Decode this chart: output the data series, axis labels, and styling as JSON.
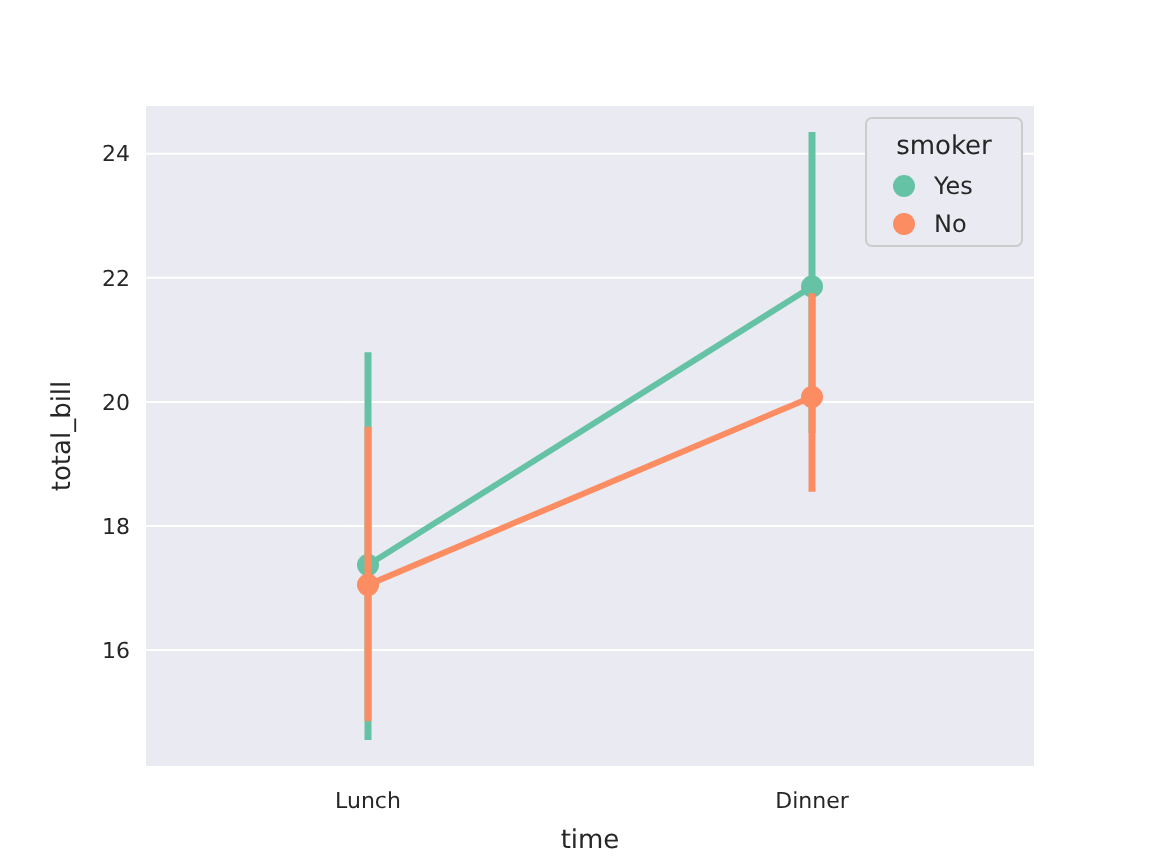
{
  "chart_data": {
    "type": "line",
    "xlabel": "time",
    "ylabel": "total_bill",
    "legend_title": "smoker",
    "categories": [
      "Lunch",
      "Dinner"
    ],
    "ylim": [
      14.13,
      24.77
    ],
    "yticks": [
      16,
      18,
      20,
      22,
      24
    ],
    "grid": "y",
    "legend": "top right",
    "marker": "circle",
    "line_style": "solid",
    "series": [
      {
        "name": "Yes",
        "color": "#66c2a5",
        "values": [
          17.37,
          21.86
        ],
        "errors": [
          [
            14.55,
            20.8
          ],
          [
            19.5,
            24.35
          ]
        ]
      },
      {
        "name": "No",
        "color": "#fc8d62",
        "values": [
          17.05,
          20.08
        ],
        "errors": [
          [
            14.85,
            19.6
          ],
          [
            18.55,
            21.75
          ]
        ]
      }
    ]
  }
}
